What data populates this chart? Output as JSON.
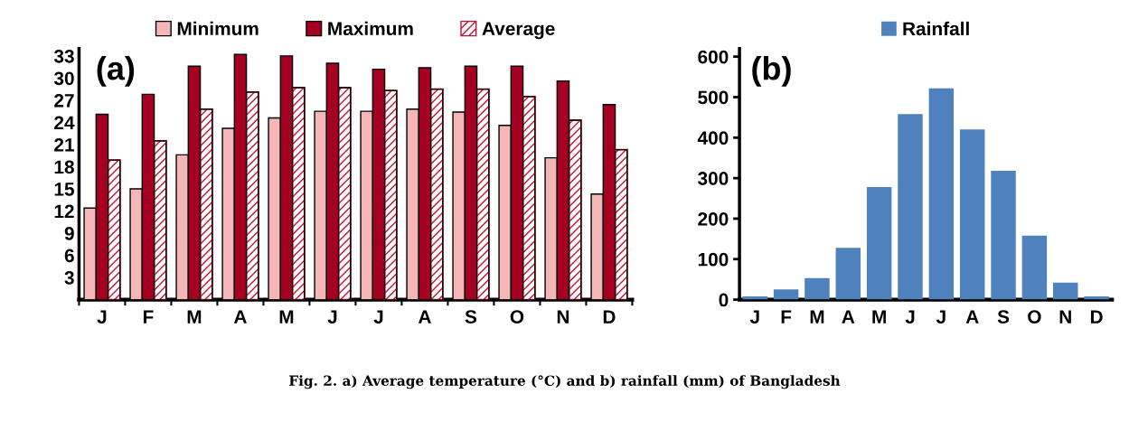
{
  "chart_data": [
    {
      "type": "bar",
      "categories": [
        "J",
        "F",
        "M",
        "A",
        "M",
        "J",
        "J",
        "A",
        "S",
        "O",
        "N",
        "D"
      ],
      "series": [
        {
          "name": "Minimum",
          "color": "#f4b6b6",
          "values": [
            12.4,
            15,
            19.6,
            23.2,
            24.6,
            25.5,
            25.5,
            25.8,
            25.4,
            23.6,
            19.2,
            14.3
          ]
        },
        {
          "name": "Maximum",
          "color": "#a50021",
          "values": [
            25.1,
            27.8,
            31.6,
            33.2,
            33,
            32,
            31.2,
            31.4,
            31.6,
            31.6,
            29.6,
            26.4
          ]
        },
        {
          "name": "Average",
          "color": "#c8102e",
          "values": [
            18.9,
            21.5,
            25.8,
            28.1,
            28.7,
            28.7,
            28.3,
            28.5,
            28.5,
            27.5,
            24.3,
            20.3
          ]
        }
      ],
      "ylim": [
        0,
        34
      ],
      "yticks": [
        {
          "value": 0,
          "label": null
        },
        3,
        6,
        9,
        12,
        15,
        18,
        21,
        24,
        27,
        30,
        33
      ],
      "grid": false,
      "legend": "top",
      "annotations": [
        "(a)",
        "Fig. 2. a) Average temperature (°C) and b) rainfall (mm) of Bangladesh"
      ]
    },
    {
      "type": "bar",
      "categories": [
        "J",
        "F",
        "M",
        "A",
        "M",
        "J",
        "J",
        "A",
        "S",
        "O",
        "N",
        "D"
      ],
      "series": [
        {
          "name": "Rainfall",
          "color": "#4f81bd",
          "values": [
            8,
            25,
            53,
            128,
            278,
            458,
            522,
            420,
            318,
            158,
            42,
            8
          ]
        }
      ],
      "ylim": [
        0,
        620
      ],
      "yticks": [
        0,
        100,
        200,
        300,
        400,
        500,
        600
      ],
      "grid": false,
      "legend": "top",
      "annotations": [
        "(b)"
      ]
    }
  ]
}
